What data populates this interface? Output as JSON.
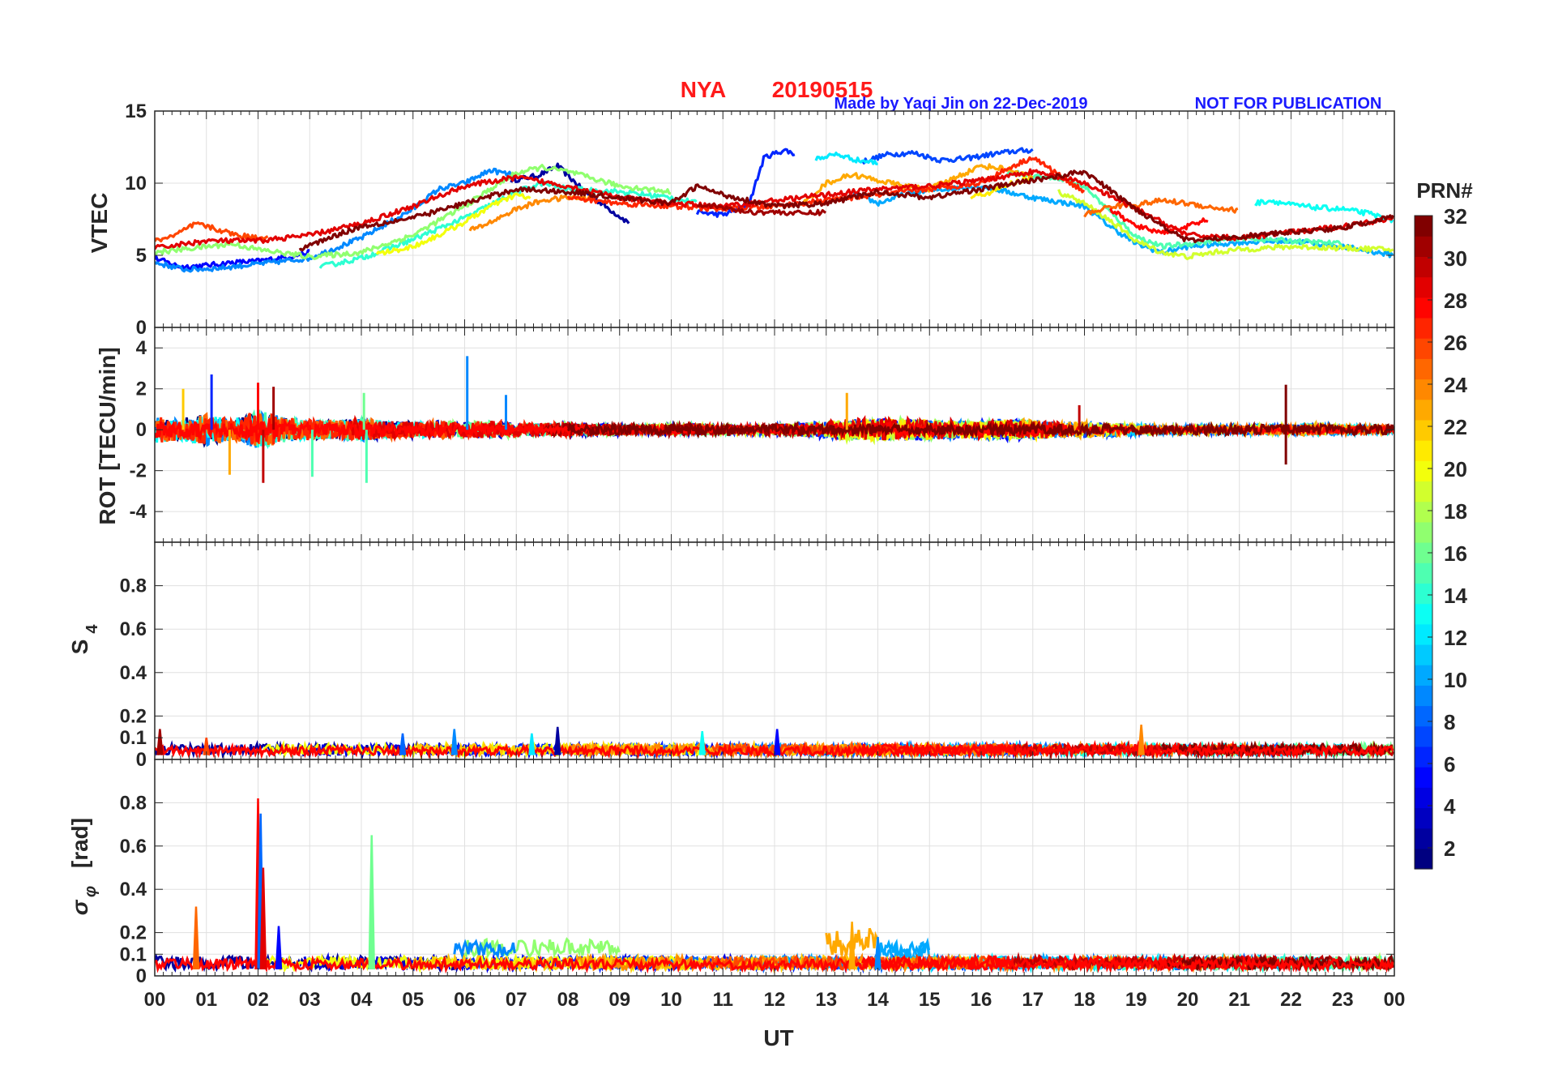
{
  "header": {
    "station": "NYA",
    "date": "20190515",
    "credit": "Made by Yaqi Jin on 22-Dec-2019",
    "notice": "NOT FOR PUBLICATION"
  },
  "colorbar": {
    "title": "PRN#",
    "ticks": [
      2,
      4,
      6,
      8,
      10,
      12,
      14,
      16,
      18,
      20,
      22,
      24,
      26,
      28,
      30,
      32
    ],
    "range": [
      1,
      32
    ]
  },
  "chart_data": [
    {
      "type": "line",
      "panel": "vtec",
      "ylabel": "VTEC",
      "xlabel": "",
      "xlim": [
        0,
        24
      ],
      "ylim": [
        0,
        15
      ],
      "yticks": [
        0,
        5,
        10,
        15
      ],
      "grid": true,
      "series": [
        {
          "name": "PRN 2",
          "prn": 2,
          "x": [
            6.9,
            7.4,
            7.8,
            8.3,
            8.8,
            9.2
          ],
          "values": [
            10.2,
            10.5,
            11.2,
            9.5,
            8.2,
            7.2
          ]
        },
        {
          "name": "PRN 5",
          "prn": 5,
          "x": [
            0.0,
            0.5,
            1.0,
            1.5,
            2.0,
            2.6,
            3.0
          ],
          "values": [
            4.8,
            4.2,
            4.3,
            4.5,
            4.6,
            4.9,
            5.2
          ]
        },
        {
          "name": "PRN 6",
          "prn": 6,
          "x": [
            10.5,
            11.0,
            11.5,
            11.8,
            12.2,
            12.4
          ],
          "values": [
            8.0,
            7.8,
            8.5,
            11.8,
            12.3,
            12.0
          ]
        },
        {
          "name": "PRN 7",
          "prn": 7,
          "x": [
            13.7,
            14.2,
            14.7,
            15.2,
            15.7,
            16.2,
            16.6,
            17.0
          ],
          "values": [
            11.5,
            12.0,
            12.1,
            11.6,
            11.7,
            12.0,
            12.2,
            12.3
          ]
        },
        {
          "name": "PRN 9",
          "prn": 9,
          "x": [
            0.0,
            0.6,
            1.2,
            2.0,
            3.0,
            4.0,
            5.0,
            5.5,
            6.0,
            6.5,
            7.0
          ],
          "values": [
            4.5,
            4.0,
            4.1,
            4.4,
            4.8,
            6.2,
            8.2,
            9.6,
            10.0,
            10.9,
            10.5
          ]
        },
        {
          "name": "PRN 10",
          "prn": 10,
          "x": [
            13.5,
            14.0,
            14.5,
            15.0,
            16.0,
            17.0,
            18.0,
            18.5,
            19.0,
            19.5,
            20.0,
            21.0,
            22.0,
            23.0,
            24.0
          ],
          "values": [
            9.4,
            8.6,
            9.2,
            9.5,
            9.8,
            9.0,
            8.4,
            7.0,
            5.8,
            5.2,
            5.6,
            5.9,
            6.0,
            5.6,
            5.0
          ]
        },
        {
          "name": "PRN 12",
          "prn": 12,
          "x": [
            12.8,
            13.2,
            13.6,
            14.0
          ],
          "values": [
            11.7,
            12.0,
            11.6,
            11.4
          ]
        },
        {
          "name": "PRN 13",
          "prn": 13,
          "x": [
            21.3,
            21.6,
            22.0,
            22.5,
            23.0,
            23.5,
            24.0
          ],
          "values": [
            8.6,
            8.8,
            8.5,
            8.3,
            8.2,
            7.9,
            7.4
          ]
        },
        {
          "name": "PRN 14",
          "prn": 14,
          "x": [
            3.2,
            4.0,
            5.0,
            6.0,
            7.0,
            7.5,
            8.0,
            9.0,
            10.0,
            10.5
          ],
          "values": [
            4.2,
            4.8,
            6.1,
            7.6,
            9.4,
            10.0,
            9.6,
            9.4,
            9.0,
            8.6
          ]
        },
        {
          "name": "PRN 15",
          "prn": 15,
          "x": [
            16.5,
            17.0,
            17.5,
            18.0,
            18.5,
            19.0,
            19.5,
            20.0,
            21.0,
            22.0,
            23.0
          ],
          "values": [
            10.8,
            10.5,
            10.4,
            9.8,
            8.0,
            6.3,
            5.6,
            5.8,
            6.2,
            6.0,
            5.8
          ]
        },
        {
          "name": "PRN 17",
          "prn": 17,
          "x": [
            0.0,
            0.5,
            1.0,
            1.5,
            2.0,
            3.0,
            4.0,
            5.0,
            6.0,
            6.5,
            7.0,
            7.5,
            8.0,
            9.0,
            10.0
          ],
          "values": [
            5.2,
            5.4,
            5.6,
            5.8,
            5.4,
            4.9,
            5.2,
            6.4,
            8.4,
            9.6,
            10.7,
            11.1,
            10.8,
            9.8,
            9.4
          ]
        },
        {
          "name": "PRN 19",
          "prn": 19,
          "x": [
            17.5,
            18.0,
            18.5,
            19.0,
            19.5,
            20.0,
            20.5,
            21.0,
            22.0,
            23.0,
            24.0
          ],
          "values": [
            9.4,
            8.6,
            7.4,
            6.0,
            5.2,
            4.9,
            5.2,
            5.4,
            5.6,
            5.5,
            5.4
          ]
        },
        {
          "name": "PRN 20",
          "prn": 20,
          "x": [
            4.3,
            5.0,
            5.5,
            6.0,
            6.5,
            7.0,
            7.3
          ],
          "values": [
            5.1,
            5.6,
            6.4,
            7.3,
            8.4,
            9.2,
            8.9
          ]
        },
        {
          "name": "PRN 21",
          "prn": 21,
          "x": [
            15.8,
            16.2,
            16.6,
            17.0
          ],
          "values": [
            9.0,
            9.4,
            10.0,
            10.4
          ]
        },
        {
          "name": "PRN 23",
          "prn": 23,
          "x": [
            12.5,
            13.0,
            13.5,
            14.0,
            14.5,
            15.0,
            15.5,
            16.0,
            16.5,
            17.0
          ],
          "values": [
            8.4,
            10.0,
            10.6,
            10.2,
            9.8,
            9.6,
            10.4,
            11.2,
            11.0,
            10.4
          ]
        },
        {
          "name": "PRN 24",
          "prn": 24,
          "x": [
            6.1,
            6.5,
            7.0,
            7.5,
            8.0,
            8.5
          ],
          "values": [
            6.7,
            7.3,
            8.2,
            8.8,
            9.0,
            8.9
          ]
        },
        {
          "name": "PRN 25",
          "prn": 25,
          "x": [
            18.0,
            18.5,
            19.0,
            19.5,
            20.0,
            20.5,
            21.0
          ],
          "values": [
            7.8,
            8.4,
            8.5,
            8.8,
            8.6,
            8.3,
            8.1
          ]
        },
        {
          "name": "PRN 26",
          "prn": 26,
          "x": [
            0.0,
            0.4,
            0.8,
            1.2,
            1.6,
            2.0,
            2.2
          ],
          "values": [
            6.0,
            6.4,
            7.2,
            6.8,
            6.4,
            6.2,
            6.4
          ]
        },
        {
          "name": "PRN 27",
          "prn": 27,
          "x": [
            8.0,
            9.0,
            10.0,
            11.0,
            12.0,
            13.0,
            14.0,
            15.0,
            16.0,
            16.5,
            17.0,
            17.5,
            18.0
          ],
          "values": [
            9.0,
            8.6,
            8.4,
            8.2,
            8.4,
            8.8,
            9.2,
            9.6,
            10.0,
            11.0,
            11.8,
            10.6,
            9.4
          ]
        },
        {
          "name": "PRN 28",
          "prn": 28,
          "x": [
            18.5,
            19.0,
            19.5,
            20.0,
            20.4
          ],
          "values": [
            8.2,
            7.0,
            6.6,
            7.0,
            7.5
          ]
        },
        {
          "name": "PRN 29",
          "prn": 29,
          "x": [
            0.0,
            1.0,
            2.0,
            3.0,
            4.0,
            5.0,
            6.0,
            7.0,
            8.0,
            9.0,
            10.0,
            11.0,
            12.0,
            13.0,
            14.0,
            15.0,
            16.0,
            17.0,
            18.0,
            19.0,
            20.0,
            21.0,
            22.0,
            23.0,
            24.0
          ],
          "values": [
            5.5,
            6.0,
            6.0,
            6.4,
            7.2,
            8.4,
            9.8,
            10.4,
            9.8,
            9.0,
            8.6,
            8.4,
            8.8,
            9.2,
            9.6,
            9.8,
            10.2,
            10.8,
            10.0,
            8.2,
            6.4,
            6.2,
            6.6,
            7.0,
            7.6
          ]
        },
        {
          "name": "PRN 31",
          "prn": 31,
          "x": [
            10.5,
            11.0,
            11.5,
            12.0,
            12.5,
            13.0
          ],
          "values": [
            8.6,
            8.3,
            8.0,
            8.0,
            7.9,
            8.0
          ]
        },
        {
          "name": "PRN 32",
          "prn": 32,
          "x": [
            2.8,
            3.5,
            4.0,
            5.0,
            6.0,
            7.0,
            8.0,
            9.0,
            10.0,
            10.5,
            11.0,
            12.0,
            13.0,
            14.0,
            15.0,
            16.0,
            17.0,
            18.0,
            19.0,
            20.0,
            21.0,
            22.0,
            23.0,
            24.0
          ],
          "values": [
            5.4,
            6.4,
            7.0,
            7.6,
            8.6,
            9.6,
            9.4,
            9.0,
            8.6,
            9.8,
            9.2,
            8.4,
            8.6,
            9.4,
            9.0,
            9.6,
            10.2,
            10.8,
            8.2,
            6.0,
            6.3,
            6.6,
            6.9,
            7.7
          ]
        }
      ]
    },
    {
      "type": "line",
      "panel": "rot",
      "ylabel": "ROT [TECU/min]",
      "xlabel": "",
      "xlim": [
        0,
        24
      ],
      "ylim": [
        -5.5,
        5
      ],
      "yticks": [
        -4,
        -2,
        0,
        2,
        4
      ],
      "grid": true,
      "noise_envelope": {
        "x": [
          0,
          0.5,
          1,
          1.5,
          2,
          2.5,
          3,
          3.5,
          4,
          4.5,
          5,
          5.5,
          6,
          6.5,
          7,
          7.5,
          8,
          8.5,
          9,
          9.5,
          10,
          10.5,
          11,
          11.5,
          12,
          12.5,
          13,
          13.5,
          14,
          14.5,
          15,
          15.5,
          16,
          16.5,
          17,
          17.5,
          18,
          18.5,
          19,
          19.5,
          20,
          20.5,
          21,
          21.5,
          22,
          22.5,
          23,
          23.5,
          24
        ],
        "amplitude": [
          1.2,
          1.0,
          1.4,
          0.9,
          1.8,
          1.1,
          0.9,
          0.8,
          1.0,
          0.8,
          0.7,
          0.8,
          0.7,
          0.8,
          0.6,
          0.6,
          0.6,
          0.5,
          0.5,
          0.4,
          0.5,
          0.5,
          0.4,
          0.4,
          0.5,
          0.6,
          0.8,
          1.0,
          1.0,
          1.0,
          0.9,
          0.8,
          0.8,
          0.9,
          0.9,
          0.7,
          0.7,
          0.6,
          0.5,
          0.4,
          0.4,
          0.4,
          0.4,
          0.4,
          0.5,
          0.5,
          0.4,
          0.4,
          0.4
        ]
      },
      "spikes": [
        {
          "x": 0.55,
          "value": 2.0,
          "prn": 22
        },
        {
          "x": 1.1,
          "value": 2.7,
          "prn": 6
        },
        {
          "x": 1.45,
          "value": -2.2,
          "prn": 23
        },
        {
          "x": 2.0,
          "value": 2.3,
          "prn": 28
        },
        {
          "x": 2.1,
          "value": -2.6,
          "prn": 30
        },
        {
          "x": 2.3,
          "value": 2.1,
          "prn": 31
        },
        {
          "x": 3.05,
          "value": -2.3,
          "prn": 15
        },
        {
          "x": 4.1,
          "value": -2.6,
          "prn": 15
        },
        {
          "x": 4.05,
          "value": 1.8,
          "prn": 16
        },
        {
          "x": 6.05,
          "value": 3.6,
          "prn": 9
        },
        {
          "x": 6.8,
          "value": 1.7,
          "prn": 9
        },
        {
          "x": 13.4,
          "value": 1.8,
          "prn": 23
        },
        {
          "x": 17.9,
          "value": 1.2,
          "prn": 30
        },
        {
          "x": 21.9,
          "value": 2.2,
          "prn": 32
        },
        {
          "x": 21.9,
          "value": -1.7,
          "prn": 32
        }
      ]
    },
    {
      "type": "line",
      "panel": "s4",
      "ylabel": "S4",
      "ylabel_main": "S",
      "ylabel_sub": "4",
      "xlabel": "",
      "xlim": [
        0,
        24
      ],
      "ylim": [
        0,
        1
      ],
      "yticks": [
        0,
        0.1,
        0.2,
        0.4,
        0.6,
        0.8
      ],
      "ytick_labels": [
        "0",
        "0.1",
        "0.2",
        "0.4",
        "0.6",
        "0.8"
      ],
      "grid": true,
      "baseline": [
        0.02,
        0.07
      ],
      "spikes": [
        {
          "x": 0.1,
          "value": 0.14,
          "prn": 31
        },
        {
          "x": 1.0,
          "value": 0.1,
          "prn": 26
        },
        {
          "x": 4.8,
          "value": 0.12,
          "prn": 8
        },
        {
          "x": 5.8,
          "value": 0.14,
          "prn": 9
        },
        {
          "x": 7.3,
          "value": 0.12,
          "prn": 12
        },
        {
          "x": 7.8,
          "value": 0.15,
          "prn": 2
        },
        {
          "x": 10.6,
          "value": 0.13,
          "prn": 13
        },
        {
          "x": 12.05,
          "value": 0.14,
          "prn": 5
        },
        {
          "x": 19.1,
          "value": 0.16,
          "prn": 24
        }
      ]
    },
    {
      "type": "line",
      "panel": "sigma_phi",
      "ylabel": "σφ [rad]",
      "ylabel_main": "σ",
      "ylabel_sub": "φ",
      "ylabel_unit": "[rad]",
      "xlabel": "UT",
      "xlim": [
        0,
        24
      ],
      "ylim": [
        0,
        1
      ],
      "yticks": [
        0,
        0.1,
        0.2,
        0.4,
        0.6,
        0.8
      ],
      "ytick_labels": [
        "0",
        "0.1",
        "0.2",
        "0.4",
        "0.6",
        "0.8"
      ],
      "xtick_labels": [
        "00",
        "01",
        "02",
        "03",
        "04",
        "05",
        "06",
        "07",
        "08",
        "09",
        "10",
        "11",
        "12",
        "13",
        "14",
        "15",
        "16",
        "17",
        "18",
        "19",
        "20",
        "21",
        "22",
        "23",
        "00"
      ],
      "grid": true,
      "baseline": [
        0.03,
        0.09
      ],
      "spikes": [
        {
          "x": 0.8,
          "value": 0.32,
          "prn": 25
        },
        {
          "x": 2.0,
          "value": 0.82,
          "prn": 28
        },
        {
          "x": 2.05,
          "value": 0.75,
          "prn": 8
        },
        {
          "x": 2.1,
          "value": 0.5,
          "prn": 29
        },
        {
          "x": 2.4,
          "value": 0.23,
          "prn": 5
        },
        {
          "x": 4.2,
          "value": 0.65,
          "prn": 16
        },
        {
          "x": 13.5,
          "value": 0.25,
          "prn": 23
        },
        {
          "x": 14.0,
          "value": 0.18,
          "prn": 9
        }
      ],
      "bumps": [
        {
          "x0": 6.0,
          "x1": 9.0,
          "value": 0.17,
          "prn": 17
        },
        {
          "x0": 13.0,
          "x1": 14.0,
          "value": 0.22,
          "prn": 23
        },
        {
          "x0": 14.0,
          "x1": 15.0,
          "value": 0.16,
          "prn": 10
        },
        {
          "x0": 5.8,
          "x1": 7.0,
          "value": 0.16,
          "prn": 9
        }
      ]
    }
  ]
}
